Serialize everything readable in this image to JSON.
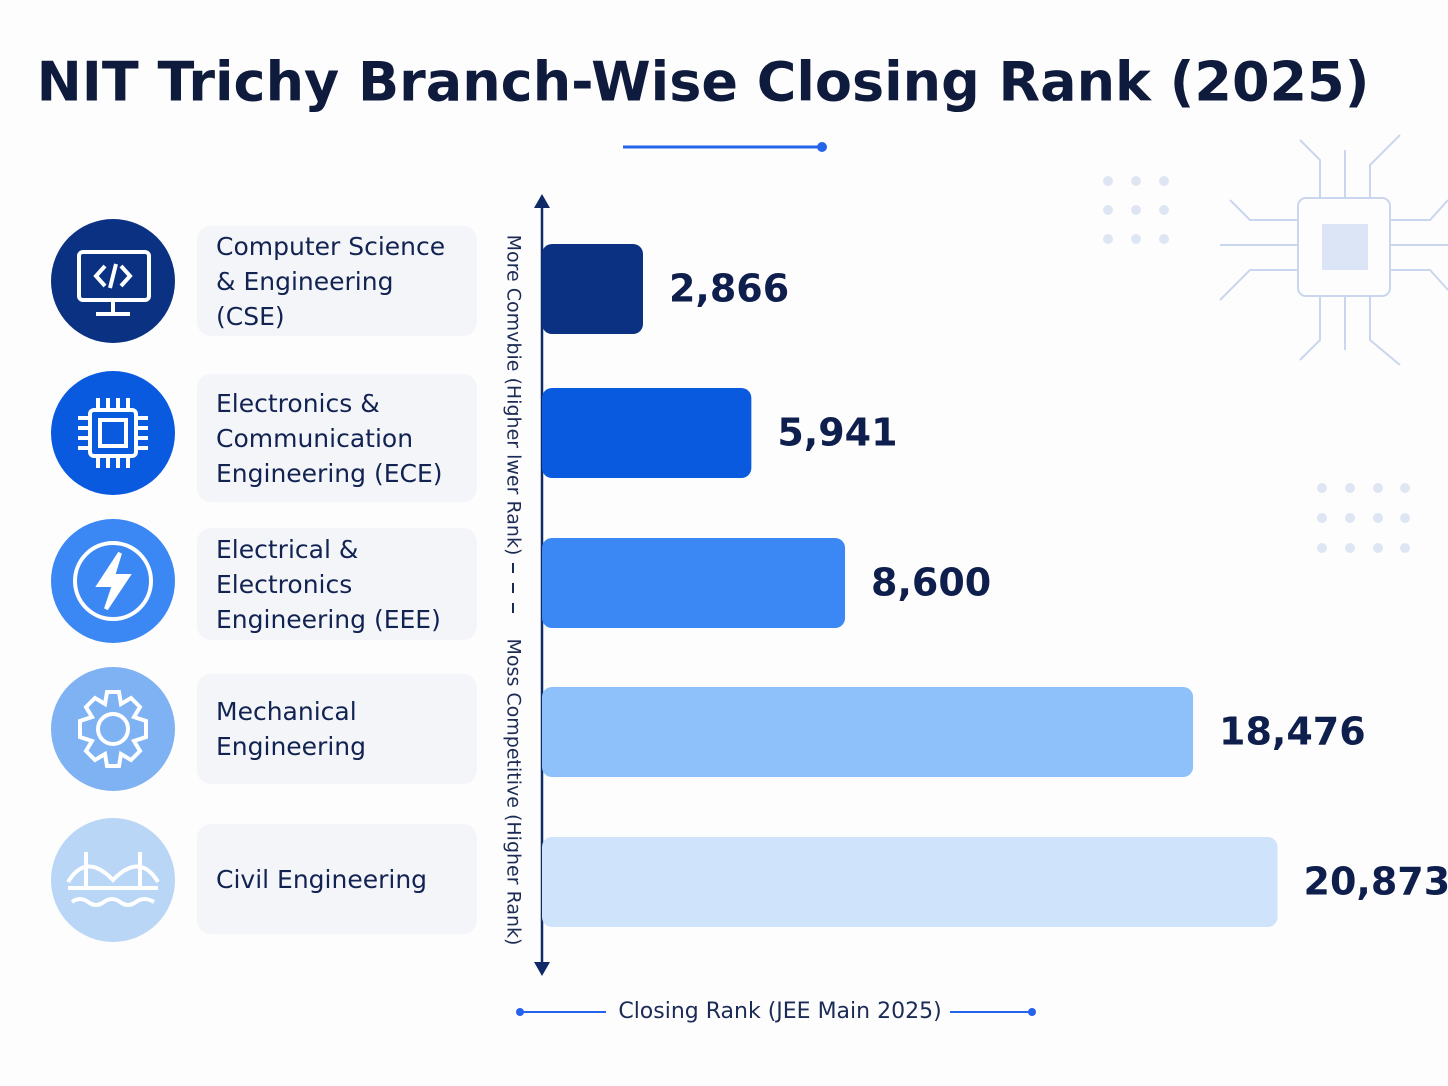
{
  "chart_data": {
    "type": "hbar",
    "title": "NIT Trichy Branch-Wise Closing Rank (2025)",
    "categories": [
      "Computer Science & Engineering (CSE)",
      "Electronics & Communication Engineering (ECE)",
      "Electrical & Electronics Engineering (EEE)",
      "Mechanical Engineering",
      "Civil Engineering"
    ],
    "values": [
      2866,
      5941,
      8600,
      18476,
      20873
    ],
    "value_labels": [
      "2,866",
      "5,941",
      "8,600",
      "18,476",
      "20,873"
    ],
    "colors": [
      "#0a3182",
      "#0a5ae0",
      "#3b88f5",
      "#8ec0fa",
      "#cfe3fb"
    ],
    "xlim": [
      0,
      21000
    ],
    "x_label": "Closing Rank (JEE Main 2025)",
    "axis_label_top": "More Comvbie (Higher lwer Rank)",
    "axis_label_bottom": "Moss Competitive (Higher Rank)"
  }
}
